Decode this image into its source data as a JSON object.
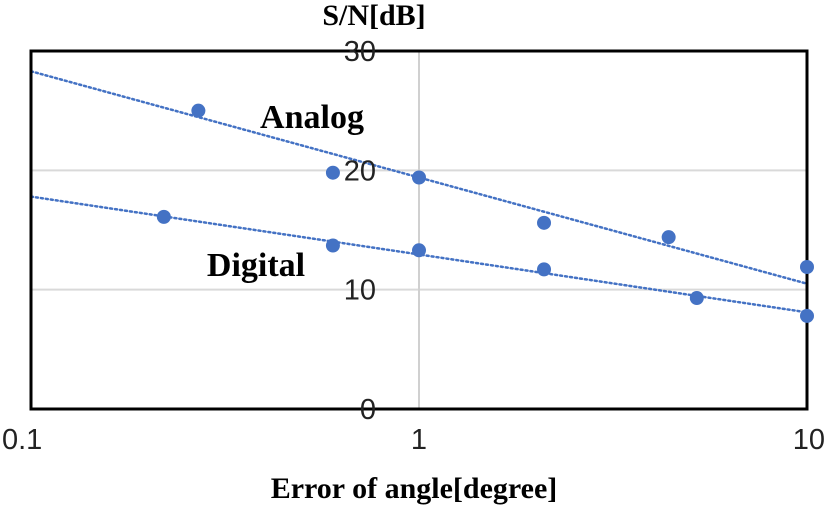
{
  "chart_data": {
    "type": "scatter",
    "x_scale": "log",
    "xlim": [
      0.1,
      10
    ],
    "ylim": [
      0,
      30
    ],
    "xlabel": "Error of angle[degree]",
    "ylabel": "S/N[dB]",
    "x_ticks": [
      "0.1",
      "1",
      "10"
    ],
    "y_ticks": [
      "0",
      "10",
      "20",
      "30"
    ],
    "grid": true,
    "legend": "none",
    "series": [
      {
        "name": "Analog",
        "color": "#4472C4",
        "x": [
          0.27,
          0.6,
          1.0,
          2.1,
          4.4,
          10.0
        ],
        "y": [
          25.0,
          19.8,
          19.4,
          15.6,
          14.4,
          11.9
        ],
        "trendline": {
          "x": [
            0.1,
            10
          ],
          "y": [
            28.3,
            10.5
          ]
        }
      },
      {
        "name": "Digital",
        "color": "#4472C4",
        "x": [
          0.22,
          0.6,
          1.0,
          2.1,
          5.2,
          10.0
        ],
        "y": [
          16.1,
          13.7,
          13.3,
          11.7,
          9.3,
          7.8
        ],
        "trendline": {
          "x": [
            0.1,
            10
          ],
          "y": [
            17.8,
            8.1
          ]
        }
      }
    ]
  }
}
